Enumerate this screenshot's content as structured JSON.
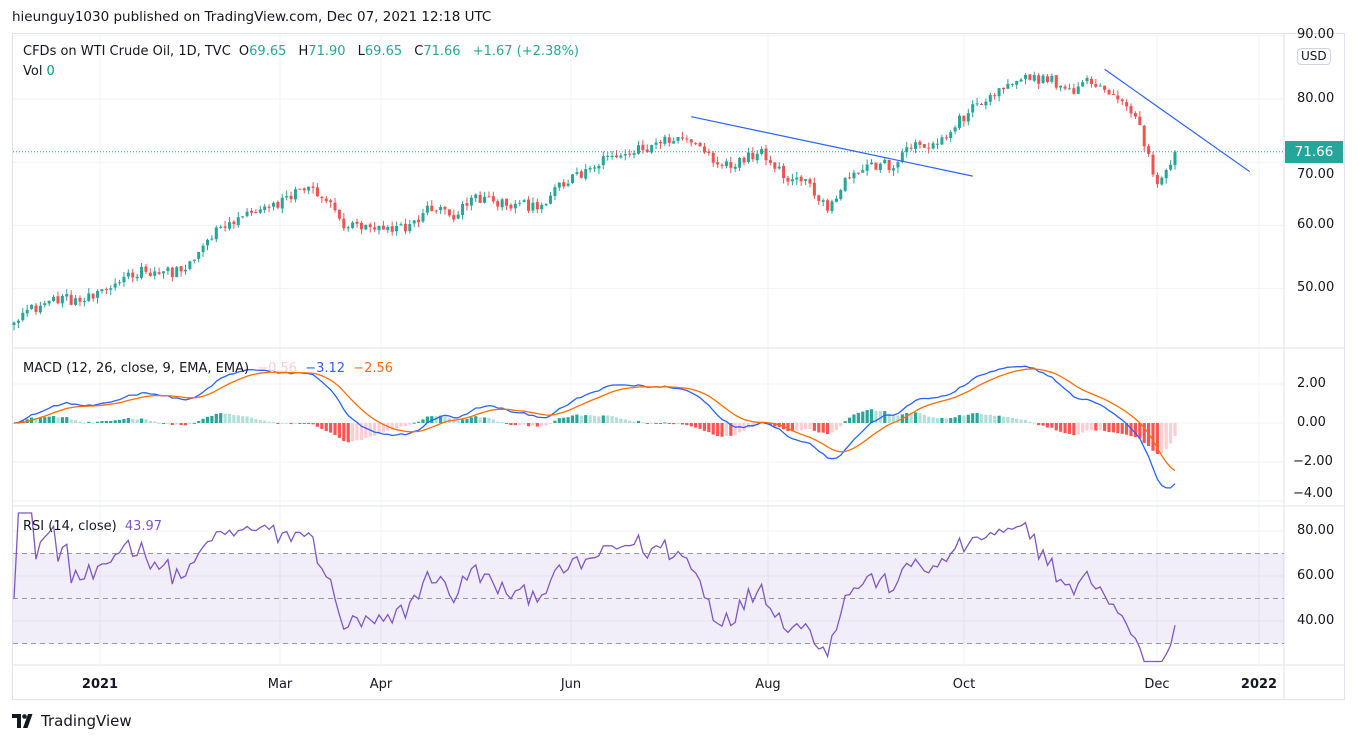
{
  "publish_line": "hieunguy1030 published on TradingView.com, Dec 07, 2021 12:18 UTC",
  "legend": {
    "symbol": "CFDs on WTI Crude Oil, 1D, TVC",
    "o_label": "O",
    "o": "69.65",
    "h_label": "H",
    "h": "71.90",
    "l_label": "L",
    "l": "69.65",
    "c_label": "C",
    "c": "71.66",
    "change": "+1.67 (+2.38%)",
    "vol_label": "Vol",
    "vol": "0"
  },
  "macd_legend": {
    "title": "MACD (12, 26, close, 9, EMA, EMA)",
    "hist": "−0.56",
    "macd": "−3.12",
    "signal": "−2.56"
  },
  "rsi_legend": {
    "title": "RSI (14, close)",
    "value": "43.97"
  },
  "price_axis": {
    "currency": "USD",
    "last_price": "71.66",
    "ticks": [
      "90.00",
      "80.00",
      "70.00",
      "60.00",
      "50.00"
    ]
  },
  "macd_axis": {
    "ticks": [
      "2.00",
      "0.00",
      "−2.00",
      "−4.00"
    ]
  },
  "rsi_axis": {
    "ticks": [
      "80.00",
      "60.00",
      "40.00"
    ]
  },
  "time_axis": [
    "2021",
    "Mar",
    "Apr",
    "Jun",
    "Aug",
    "Oct",
    "Dec",
    "2022"
  ],
  "footer": {
    "brand": "TradingView"
  },
  "colors": {
    "up": "#26a69a",
    "down": "#ef5350",
    "macd": "#2962ff",
    "signal": "#ff6d00",
    "rsi": "#7e57c2",
    "trendline": "#2962ff"
  },
  "chart_data": {
    "type": "candlestick",
    "title": "CFDs on WTI Crude Oil, 1D, TVC",
    "x_unit": "trading day index (weekly samples, every 5 days; last sample day 268)",
    "weekly_closes": [
      45.5,
      47,
      48.5,
      48,
      49,
      52,
      53,
      52.5,
      53.5,
      58.5,
      60.5,
      62.5,
      63,
      66,
      65,
      60,
      59.5,
      59,
      60,
      63,
      61.5,
      64.5,
      63.5,
      63,
      63.5,
      66.5,
      68.5,
      70.5,
      71.5,
      72.5,
      74,
      73,
      70,
      70,
      72,
      68,
      67,
      63,
      68,
      69.5,
      69.5,
      73,
      72.5,
      76.5,
      79.5,
      81.5,
      83,
      83.5,
      81,
      83,
      80.5,
      77.5,
      66.5,
      71.66
    ],
    "last_close": 71.66,
    "ylim": [
      44,
      90
    ],
    "trendlines": [
      {
        "from": [
          154,
          77.2
        ],
        "to": [
          218,
          67.8
        ]
      },
      {
        "from": [
          248,
          84.7
        ],
        "to": [
          281,
          68.5
        ]
      }
    ],
    "macd": {
      "fast": 12,
      "slow": 26,
      "signal": 9,
      "ylim": [
        -4.1,
        3.6
      ]
    },
    "rsi": {
      "length": 14,
      "upper": 70,
      "middle": 50,
      "lower": 30,
      "ylim": [
        22,
        88
      ]
    }
  }
}
